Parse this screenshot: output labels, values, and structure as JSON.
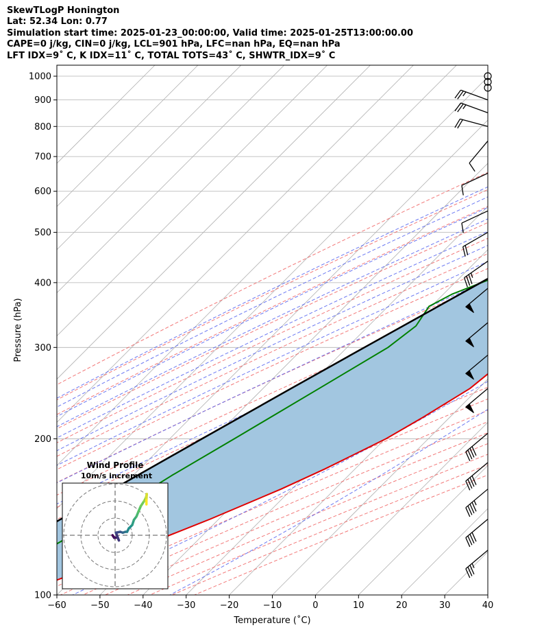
{
  "header": {
    "line1": "SkewTLogP Honington",
    "line2": "Lat: 52.34   Lon: 0.77",
    "line3": "Simulation start time: 2025-01-23_00:00:00, Valid time: 2025-01-25T13:00:00.00",
    "line4": "CAPE=0 j/kg, CIN=0 j/kg, LCL=901 hPa, LFC=nan hPa, EQ=nan hPa",
    "line5": "LFT IDX=9˚ C, K IDX=11˚ C, TOTAL TOTS=43˚ C, SHWTR_IDX=9˚ C"
  },
  "chart_data": {
    "type": "line",
    "xlabel": "Temperature (˚C)",
    "ylabel": "Pressure (hPa)",
    "xlim": [
      -60,
      40
    ],
    "ylim": [
      1050,
      100
    ],
    "y_scale": "log",
    "skew": true,
    "grid": true,
    "x_ticks": [
      -60,
      -50,
      -40,
      -30,
      -20,
      -10,
      0,
      10,
      20,
      30,
      40
    ],
    "x_tick_labels": [
      "−60",
      "−50",
      "−40",
      "−30",
      "−20",
      "−10",
      "0",
      "10",
      "20",
      "30",
      "40"
    ],
    "y_ticks": [
      1000,
      900,
      800,
      700,
      600,
      500,
      400,
      300,
      200,
      100
    ],
    "y_tick_labels": [
      "1000",
      "900",
      "800",
      "700",
      "600",
      "500",
      "400",
      "300",
      "200",
      "100"
    ],
    "colors": {
      "temperature": "#e00000",
      "dewpoint": "#008000",
      "parcel": "#000000",
      "fill": "#a2c6e0",
      "dry_adiabats": "#f06060",
      "moist_adiabats": "#5060f0",
      "mixing_ratio": "#9040c0",
      "isotherms": "#b0b0b0"
    },
    "series": [
      {
        "key": "temperature",
        "points": [
          [
            1000,
            5
          ],
          [
            950,
            4.6
          ],
          [
            900,
            3.4
          ],
          [
            850,
            2.2
          ],
          [
            800,
            1.8
          ],
          [
            700,
            0
          ],
          [
            600,
            -2
          ],
          [
            500,
            -5
          ],
          [
            440,
            -7
          ],
          [
            400,
            -7.4
          ],
          [
            360,
            -6.3
          ],
          [
            300,
            -9.8
          ],
          [
            250,
            -12
          ],
          [
            220,
            -16.2
          ],
          [
            200,
            -19.8
          ],
          [
            175,
            -27
          ],
          [
            160,
            -32.5
          ],
          [
            140,
            -42
          ],
          [
            125,
            -51
          ],
          [
            110,
            -61
          ],
          [
            100,
            -69
          ]
        ]
      },
      {
        "key": "dewpoint",
        "points": [
          [
            990,
            0
          ],
          [
            960,
            -4.5
          ],
          [
            930,
            -8.5
          ],
          [
            900,
            -10
          ],
          [
            860,
            -7
          ],
          [
            800,
            -2
          ],
          [
            700,
            -3.3
          ],
          [
            600,
            -9
          ],
          [
            500,
            -18
          ],
          [
            460,
            -23
          ],
          [
            440,
            -26
          ],
          [
            380,
            -38
          ],
          [
            360,
            -40.5
          ],
          [
            330,
            -39
          ],
          [
            300,
            -40.5
          ],
          [
            250,
            -47
          ],
          [
            200,
            -55
          ],
          [
            170,
            -61
          ],
          [
            150,
            -65
          ],
          [
            125,
            -72
          ],
          [
            110,
            -79
          ],
          [
            100,
            -84
          ]
        ]
      },
      {
        "key": "parcel",
        "points": [
          [
            1000,
            5.2
          ],
          [
            950,
            1
          ],
          [
            901,
            -0.5
          ],
          [
            850,
            -2.8
          ],
          [
            800,
            -5.2
          ],
          [
            700,
            -10.5
          ],
          [
            600,
            -16.8
          ],
          [
            500,
            -24.5
          ],
          [
            400,
            -34
          ],
          [
            300,
            -46
          ],
          [
            250,
            -53.5
          ],
          [
            200,
            -62.5
          ],
          [
            150,
            -74
          ],
          [
            125,
            -81
          ],
          [
            100,
            -89
          ]
        ]
      }
    ],
    "wind_barbs": [
      {
        "p": 1000,
        "speed": 2,
        "dir": 0
      },
      {
        "p": 975,
        "speed": 2,
        "dir": 0
      },
      {
        "p": 950,
        "speed": 2,
        "dir": 0
      },
      {
        "p": 900,
        "speed": 25,
        "dir": 290
      },
      {
        "p": 850,
        "speed": 25,
        "dir": 290
      },
      {
        "p": 800,
        "speed": 20,
        "dir": 285
      },
      {
        "p": 750,
        "speed": 10,
        "dir": 220
      },
      {
        "p": 650,
        "speed": 10,
        "dir": 245
      },
      {
        "p": 550,
        "speed": 10,
        "dir": 245
      },
      {
        "p": 500,
        "speed": 20,
        "dir": 240
      },
      {
        "p": 440,
        "speed": 35,
        "dir": 235
      },
      {
        "p": 390,
        "speed": 50,
        "dir": 230
      },
      {
        "p": 335,
        "speed": 50,
        "dir": 230
      },
      {
        "p": 290,
        "speed": 50,
        "dir": 230
      },
      {
        "p": 250,
        "speed": 50,
        "dir": 230
      },
      {
        "p": 205,
        "speed": 40,
        "dir": 230
      },
      {
        "p": 180,
        "speed": 40,
        "dir": 230
      },
      {
        "p": 160,
        "speed": 45,
        "dir": 230
      },
      {
        "p": 140,
        "speed": 40,
        "dir": 230
      },
      {
        "p": 122,
        "speed": 35,
        "dir": 230
      }
    ],
    "hodograph": {
      "title": "Wind Profile",
      "subtitle": "10m/s increment",
      "ring_increment": 10,
      "rings": [
        10,
        20,
        30
      ],
      "colormap": [
        "#440154",
        "#3b528b",
        "#21918c",
        "#5ec962",
        "#fde725"
      ],
      "points": [
        [
          -1.5,
          0
        ],
        [
          -0.5,
          -1.5
        ],
        [
          1.5,
          -1.3
        ],
        [
          2.2,
          -3
        ],
        [
          0.5,
          1.5
        ],
        [
          3,
          2
        ],
        [
          4.5,
          1.5
        ],
        [
          6,
          2
        ],
        [
          7,
          2
        ],
        [
          8,
          4
        ],
        [
          10,
          6
        ],
        [
          11,
          9
        ],
        [
          12.5,
          11
        ],
        [
          13.5,
          13.5
        ],
        [
          15,
          17
        ],
        [
          17,
          20
        ],
        [
          18,
          22
        ],
        [
          18.5,
          24
        ],
        [
          18.3,
          20.5
        ],
        [
          18.3,
          18
        ]
      ]
    }
  }
}
